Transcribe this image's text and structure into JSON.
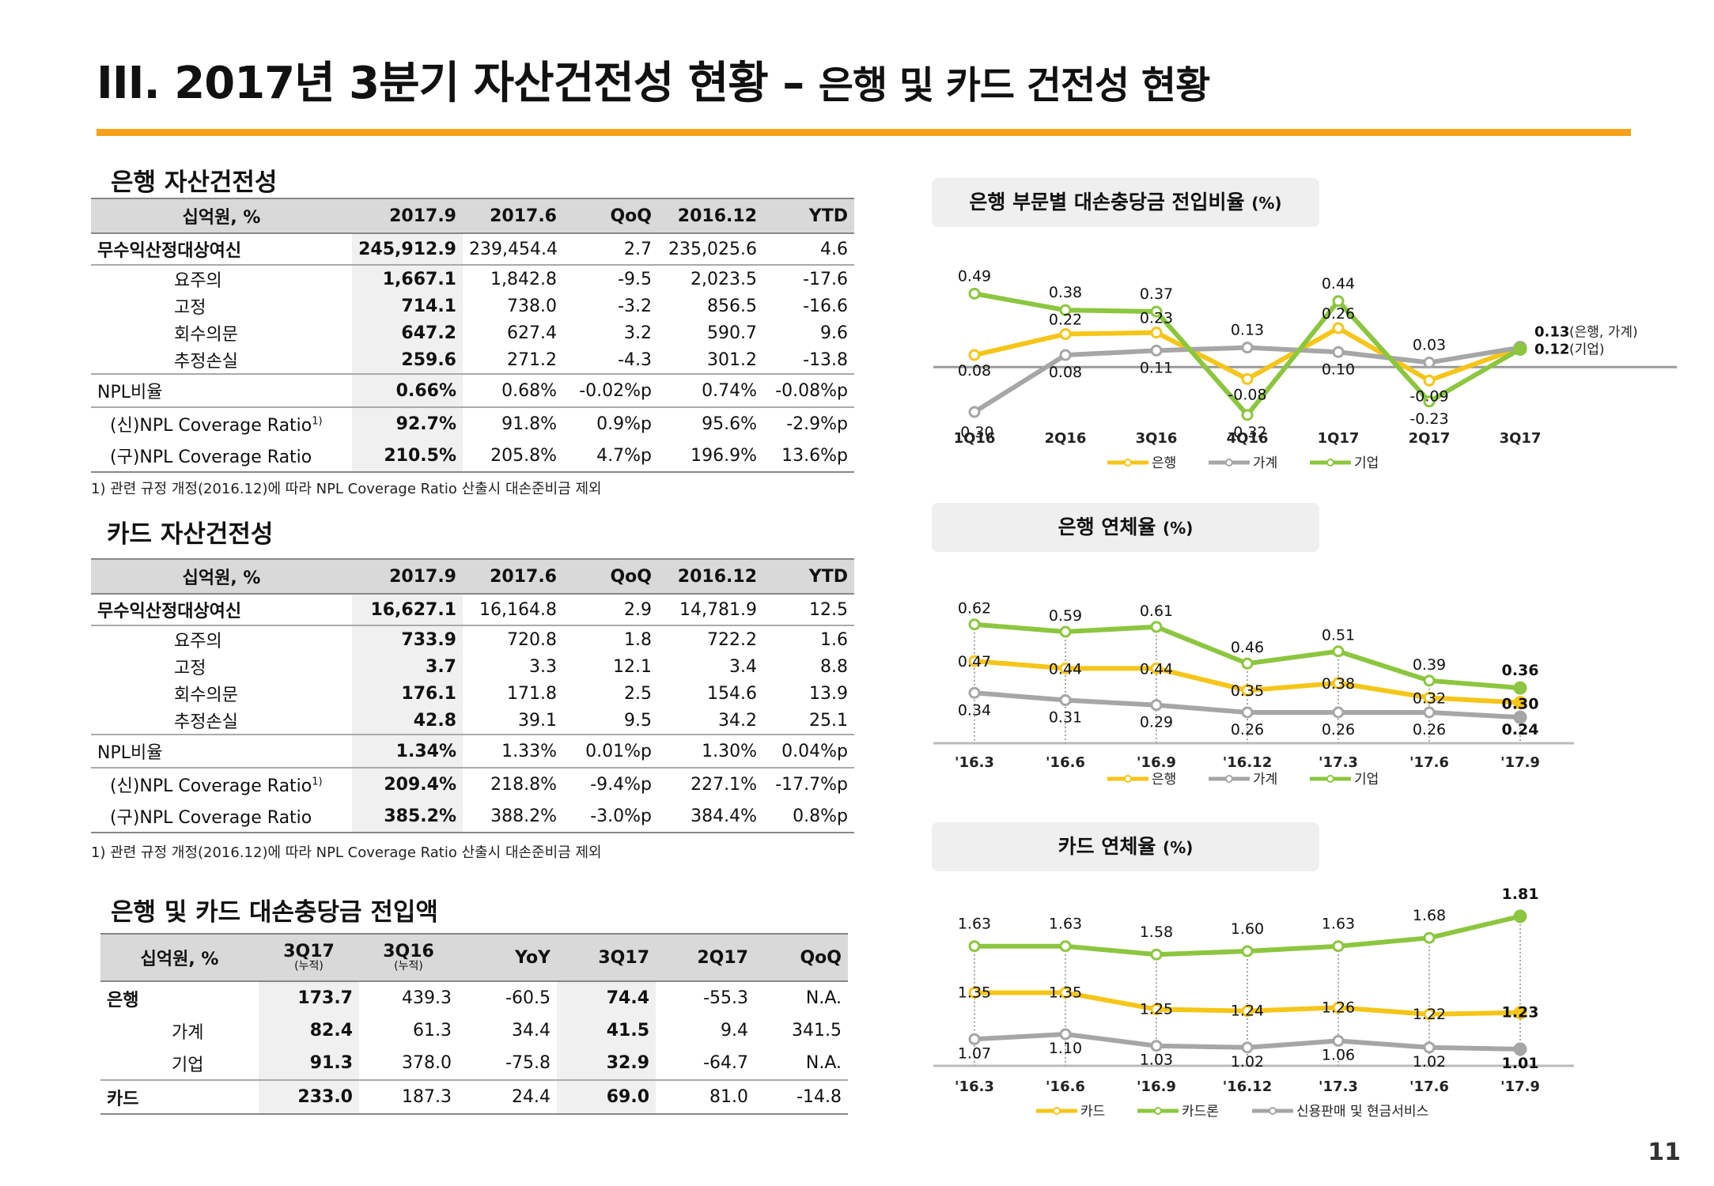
{
  "title": {
    "main": "III. 2017년 3분기 자산건전성 현황",
    "dash": " – ",
    "sub": "은행 및 카드 건전성 현황"
  },
  "page_number": "11",
  "colors": {
    "accent": "#f5a31a",
    "bank": "#f5c518",
    "household": "#a6a6a6",
    "corporate": "#8cc63f"
  },
  "bank_section": {
    "title": "은행 자산건전성",
    "headers": [
      "십억원, %",
      "2017.9",
      "2017.6",
      "QoQ",
      "2016.12",
      "YTD"
    ],
    "rows": [
      [
        "무수익산정대상여신",
        "245,912.9",
        "239,454.4",
        "2.7",
        "235,025.6",
        "4.6"
      ],
      [
        "요주의",
        "1,667.1",
        "1,842.8",
        "-9.5",
        "2,023.5",
        "-17.6"
      ],
      [
        "고정",
        "714.1",
        "738.0",
        "-3.2",
        "856.5",
        "-16.6"
      ],
      [
        "회수의문",
        "647.2",
        "627.4",
        "3.2",
        "590.7",
        "9.6"
      ],
      [
        "추정손실",
        "259.6",
        "271.2",
        "-4.3",
        "301.2",
        "-13.8"
      ],
      [
        "NPL비율",
        "0.66%",
        "0.68%",
        "-0.02%p",
        "0.74%",
        "-0.08%p"
      ],
      [
        "(신)NPL Coverage Ratio",
        "92.7%",
        "91.8%",
        "0.9%p",
        "95.6%",
        "-2.9%p"
      ],
      [
        "(구)NPL Coverage Ratio",
        "210.5%",
        "205.8%",
        "4.7%p",
        "196.9%",
        "13.6%p"
      ]
    ],
    "footnote_mark": "1)",
    "footnote": "1) 관련 규정 개정(2016.12)에 따라 NPL Coverage Ratio 산출시 대손준비금 제외"
  },
  "card_section": {
    "title": "카드 자산건전성",
    "headers": [
      "십억원, %",
      "2017.9",
      "2017.6",
      "QoQ",
      "2016.12",
      "YTD"
    ],
    "rows": [
      [
        "무수익산정대상여신",
        "16,627.1",
        "16,164.8",
        "2.9",
        "14,781.9",
        "12.5"
      ],
      [
        "요주의",
        "733.9",
        "720.8",
        "1.8",
        "722.2",
        "1.6"
      ],
      [
        "고정",
        "3.7",
        "3.3",
        "12.1",
        "3.4",
        "8.8"
      ],
      [
        "회수의문",
        "176.1",
        "171.8",
        "2.5",
        "154.6",
        "13.9"
      ],
      [
        "추정손실",
        "42.8",
        "39.1",
        "9.5",
        "34.2",
        "25.1"
      ],
      [
        "NPL비율",
        "1.34%",
        "1.33%",
        "0.01%p",
        "1.30%",
        "0.04%p"
      ],
      [
        "(신)NPL Coverage Ratio",
        "209.4%",
        "218.8%",
        "-9.4%p",
        "227.1%",
        "-17.7%p"
      ],
      [
        "(구)NPL Coverage Ratio",
        "385.2%",
        "388.2%",
        "-3.0%p",
        "384.4%",
        "0.8%p"
      ]
    ],
    "footnote_mark": "1)",
    "footnote": "1) 관련 규정 개정(2016.12)에 따라 NPL Coverage Ratio 산출시 대손준비금 제외"
  },
  "provision_section": {
    "title": "은행 및 카드 대손충당금 전입액",
    "headers": [
      "십억원, %",
      "3Q17",
      "3Q16",
      "YoY",
      "3Q17",
      "2Q17",
      "QoQ"
    ],
    "sub_headers": [
      "(누적)",
      "(누적)"
    ],
    "rows": [
      [
        "은행",
        "173.7",
        "439.3",
        "-60.5",
        "74.4",
        "-55.3",
        "N.A."
      ],
      [
        "가계",
        "82.4",
        "61.3",
        "34.4",
        "41.5",
        "9.4",
        "341.5"
      ],
      [
        "기업",
        "91.3",
        "378.0",
        "-75.8",
        "32.9",
        "-64.7",
        "N.A."
      ],
      [
        "카드",
        "233.0",
        "187.3",
        "24.4",
        "69.0",
        "81.0",
        "-14.8"
      ]
    ]
  },
  "chart_data": [
    {
      "type": "line",
      "title": "은행 부문별 대손충당금 전입비율",
      "unit": "(%)",
      "categories": [
        "1Q16",
        "2Q16",
        "3Q16",
        "4Q16",
        "1Q17",
        "2Q17",
        "3Q17"
      ],
      "series": [
        {
          "name": "은행",
          "color": "#f5c518",
          "values": [
            0.08,
            0.22,
            0.23,
            -0.08,
            0.26,
            -0.09,
            0.13
          ]
        },
        {
          "name": "가계",
          "color": "#a6a6a6",
          "values": [
            -0.3,
            0.08,
            0.11,
            0.13,
            0.1,
            0.03,
            0.13
          ]
        },
        {
          "name": "기업",
          "color": "#8cc63f",
          "values": [
            0.49,
            0.38,
            0.37,
            -0.32,
            0.44,
            -0.23,
            0.12
          ]
        }
      ],
      "end_annotations": [
        "(은행, 가계)",
        "(기업)"
      ],
      "ylim": [
        -0.4,
        0.55
      ]
    },
    {
      "type": "line",
      "title": "은행 연체율",
      "unit": "(%)",
      "categories": [
        "'16.3",
        "'16.6",
        "'16.9",
        "'16.12",
        "'17.3",
        "'17.6",
        "'17.9"
      ],
      "series": [
        {
          "name": "은행",
          "color": "#f5c518",
          "values": [
            0.47,
            0.44,
            0.44,
            0.35,
            0.38,
            0.32,
            0.3
          ]
        },
        {
          "name": "가계",
          "color": "#a6a6a6",
          "values": [
            0.34,
            0.31,
            0.29,
            0.26,
            0.26,
            0.26,
            0.24
          ]
        },
        {
          "name": "기업",
          "color": "#8cc63f",
          "values": [
            0.62,
            0.59,
            0.61,
            0.46,
            0.51,
            0.39,
            0.36
          ]
        }
      ],
      "ylim": [
        0.15,
        0.7
      ]
    },
    {
      "type": "line",
      "title": "카드 연체율",
      "unit": "(%)",
      "categories": [
        "'16.3",
        "'16.6",
        "'16.9",
        "'16.12",
        "'17.3",
        "'17.6",
        "'17.9"
      ],
      "series": [
        {
          "name": "카드",
          "color": "#f5c518",
          "values": [
            1.35,
            1.35,
            1.25,
            1.24,
            1.26,
            1.22,
            1.23
          ]
        },
        {
          "name": "카드론",
          "color": "#8cc63f",
          "values": [
            1.63,
            1.63,
            1.58,
            1.6,
            1.63,
            1.68,
            1.81
          ]
        },
        {
          "name": "신용판매 및 현금서비스",
          "color": "#a6a6a6",
          "values": [
            1.07,
            1.1,
            1.03,
            1.02,
            1.06,
            1.02,
            1.01
          ]
        }
      ],
      "ylim": [
        0.9,
        1.9
      ]
    }
  ]
}
